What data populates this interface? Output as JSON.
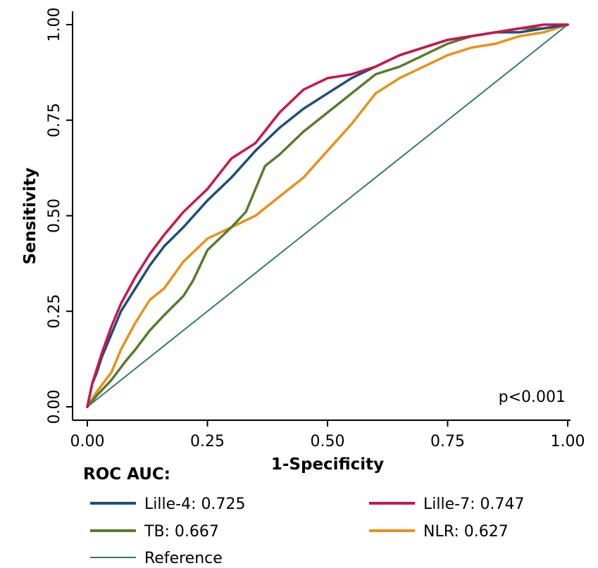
{
  "chart_data": {
    "type": "line",
    "xlabel": "1-Specificity",
    "ylabel": "Sensitivity",
    "xlim": [
      0,
      1
    ],
    "ylim": [
      0,
      1
    ],
    "xticks": [
      "0.00",
      "0.25",
      "0.50",
      "0.75",
      "1.00"
    ],
    "yticks": [
      "0.00",
      "0.25",
      "0.50",
      "0.75",
      "1.00"
    ],
    "grid": false,
    "annotation": "p<0.001",
    "legend": {
      "title": "ROC AUC:",
      "position": "bottom",
      "entries": [
        {
          "label": "Lille-4: 0.725",
          "color": "#1f4e79"
        },
        {
          "label": "Lille-7: 0.747",
          "color": "#c8174a"
        },
        {
          "label": "TB: 0.667",
          "color": "#5a7a2e"
        },
        {
          "label": "NLR: 0.627",
          "color": "#e8901c"
        },
        {
          "label": "Reference",
          "color": "#2e7a72"
        }
      ]
    },
    "series": [
      {
        "label": "Lille-4: 0.725",
        "color": "#1f4e79",
        "x": [
          0,
          0.01,
          0.02,
          0.03,
          0.05,
          0.07,
          0.1,
          0.13,
          0.16,
          0.2,
          0.25,
          0.3,
          0.35,
          0.4,
          0.45,
          0.5,
          0.55,
          0.6,
          0.65,
          0.7,
          0.75,
          0.8,
          0.85,
          0.9,
          0.95,
          1
        ],
        "y": [
          0,
          0.06,
          0.09,
          0.13,
          0.19,
          0.25,
          0.31,
          0.37,
          0.42,
          0.47,
          0.54,
          0.6,
          0.67,
          0.73,
          0.78,
          0.82,
          0.86,
          0.89,
          0.92,
          0.94,
          0.96,
          0.97,
          0.98,
          0.98,
          0.99,
          1
        ]
      },
      {
        "label": "Lille-7: 0.747",
        "color": "#c8174a",
        "x": [
          0,
          0.01,
          0.02,
          0.03,
          0.05,
          0.07,
          0.1,
          0.13,
          0.16,
          0.2,
          0.25,
          0.3,
          0.35,
          0.4,
          0.45,
          0.5,
          0.55,
          0.6,
          0.65,
          0.7,
          0.75,
          0.8,
          0.85,
          0.9,
          0.95,
          1
        ],
        "y": [
          0,
          0.06,
          0.1,
          0.14,
          0.21,
          0.27,
          0.34,
          0.4,
          0.45,
          0.51,
          0.57,
          0.65,
          0.69,
          0.77,
          0.83,
          0.86,
          0.87,
          0.89,
          0.92,
          0.94,
          0.96,
          0.97,
          0.98,
          0.99,
          1.0,
          1
        ]
      },
      {
        "label": "TB: 0.667",
        "color": "#5a7a2e",
        "x": [
          0,
          0.02,
          0.05,
          0.08,
          0.1,
          0.13,
          0.16,
          0.2,
          0.22,
          0.25,
          0.3,
          0.33,
          0.35,
          0.37,
          0.4,
          0.45,
          0.5,
          0.55,
          0.6,
          0.65,
          0.7,
          0.75,
          0.8,
          0.85,
          0.9,
          0.95,
          1
        ],
        "y": [
          0,
          0.03,
          0.07,
          0.12,
          0.15,
          0.2,
          0.24,
          0.29,
          0.33,
          0.41,
          0.47,
          0.51,
          0.57,
          0.63,
          0.66,
          0.72,
          0.77,
          0.82,
          0.87,
          0.89,
          0.92,
          0.95,
          0.97,
          0.98,
          0.99,
          0.99,
          1
        ]
      },
      {
        "label": "NLR: 0.627",
        "color": "#e8901c",
        "x": [
          0,
          0.02,
          0.05,
          0.07,
          0.1,
          0.13,
          0.16,
          0.2,
          0.25,
          0.3,
          0.35,
          0.4,
          0.45,
          0.5,
          0.55,
          0.6,
          0.65,
          0.7,
          0.75,
          0.8,
          0.85,
          0.9,
          0.95,
          1
        ],
        "y": [
          0,
          0.04,
          0.09,
          0.15,
          0.22,
          0.28,
          0.31,
          0.38,
          0.44,
          0.47,
          0.5,
          0.55,
          0.6,
          0.67,
          0.74,
          0.82,
          0.86,
          0.89,
          0.92,
          0.94,
          0.95,
          0.97,
          0.98,
          1
        ]
      },
      {
        "label": "Reference",
        "color": "#2e7a72",
        "x": [
          0,
          1
        ],
        "y": [
          0,
          1
        ]
      }
    ]
  }
}
